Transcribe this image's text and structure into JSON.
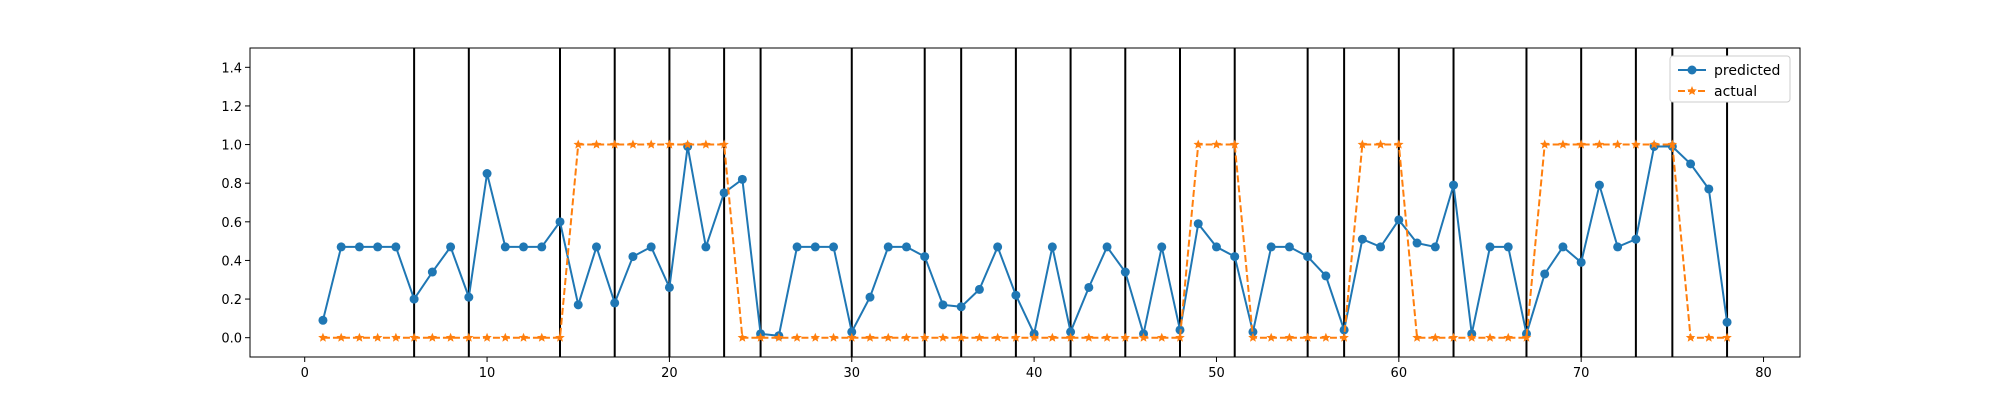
{
  "chart_data": {
    "type": "line",
    "title": "",
    "xlabel": "",
    "ylabel": "",
    "xlim": [
      -3,
      82
    ],
    "ylim": [
      -0.1,
      1.5
    ],
    "xticks": [
      0,
      10,
      20,
      30,
      40,
      50,
      60,
      70,
      80
    ],
    "yticks": [
      0.0,
      0.2,
      0.4,
      0.6,
      0.8,
      1.0,
      1.2,
      1.4
    ],
    "xtick_labels": [
      "0",
      "10",
      "20",
      "30",
      "40",
      "50",
      "60",
      "70",
      "80"
    ],
    "ytick_labels": [
      "0.0",
      "0.2",
      "0.4",
      "0.6",
      "0.8",
      "1.0",
      "1.2",
      "1.4"
    ],
    "grid": false,
    "legend_position": "top-right",
    "vertical_lines": [
      6,
      9,
      14,
      17,
      20,
      23,
      25,
      30,
      34,
      36,
      39,
      42,
      45,
      48,
      51,
      55,
      57,
      60,
      63,
      67,
      70,
      73,
      75,
      78
    ],
    "x": [
      1,
      2,
      3,
      4,
      5,
      6,
      7,
      8,
      9,
      10,
      11,
      12,
      13,
      14,
      15,
      16,
      17,
      18,
      19,
      20,
      21,
      22,
      23,
      24,
      25,
      26,
      27,
      28,
      29,
      30,
      31,
      32,
      33,
      34,
      35,
      36,
      37,
      38,
      39,
      40,
      41,
      42,
      43,
      44,
      45,
      46,
      47,
      48,
      49,
      50,
      51,
      52,
      53,
      54,
      55,
      56,
      57,
      58,
      59,
      60,
      61,
      62,
      63,
      64,
      65,
      66,
      67,
      68,
      69,
      70,
      71,
      72,
      73,
      74,
      75,
      76,
      77,
      78
    ],
    "series": [
      {
        "name": "predicted",
        "color": "#1f77b4",
        "style": "solid",
        "marker": "circle",
        "values": [
          0.09,
          0.47,
          0.47,
          0.47,
          0.47,
          0.2,
          0.34,
          0.47,
          0.21,
          0.85,
          0.47,
          0.47,
          0.47,
          0.6,
          0.17,
          0.47,
          0.18,
          0.42,
          0.47,
          0.26,
          0.99,
          0.47,
          0.75,
          0.82,
          0.02,
          0.01,
          0.47,
          0.47,
          0.47,
          0.03,
          0.21,
          0.47,
          0.47,
          0.42,
          0.17,
          0.16,
          0.25,
          0.47,
          0.22,
          0.02,
          0.47,
          0.03,
          0.26,
          0.47,
          0.34,
          0.02,
          0.47,
          0.04,
          0.59,
          0.47,
          0.42,
          0.03,
          0.47,
          0.47,
          0.42,
          0.32,
          0.04,
          0.51,
          0.47,
          0.61,
          0.49,
          0.47,
          0.79,
          0.02,
          0.47,
          0.47,
          0.02,
          0.33,
          0.47,
          0.39,
          0.79,
          0.47,
          0.51,
          0.99,
          0.99,
          0.9,
          0.77,
          0.08
        ]
      },
      {
        "name": "actual",
        "color": "#ff7f0e",
        "style": "dashed",
        "marker": "star",
        "values": [
          0,
          0,
          0,
          0,
          0,
          0,
          0,
          0,
          0,
          0,
          0,
          0,
          0,
          0,
          1,
          1,
          1,
          1,
          1,
          1,
          1,
          1,
          1,
          0,
          0,
          0,
          0,
          0,
          0,
          0,
          0,
          0,
          0,
          0,
          0,
          0,
          0,
          0,
          0,
          0,
          0,
          0,
          0,
          0,
          0,
          0,
          0,
          0,
          1,
          1,
          1,
          0,
          0,
          0,
          0,
          0,
          0,
          1,
          1,
          1,
          0,
          0,
          0,
          0,
          0,
          0,
          0,
          1,
          1,
          1,
          1,
          1,
          1,
          1,
          1,
          0,
          0,
          0
        ]
      }
    ]
  }
}
